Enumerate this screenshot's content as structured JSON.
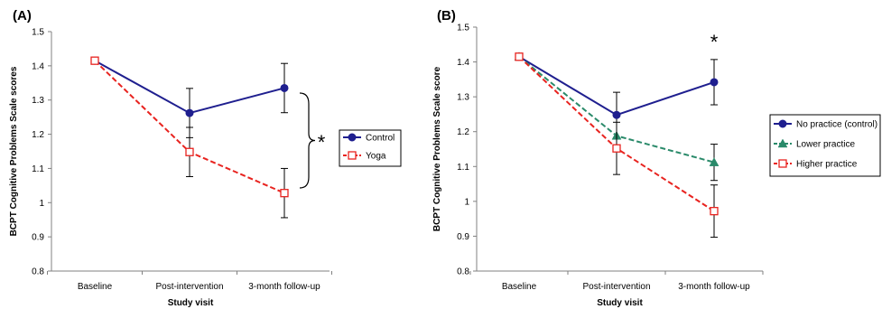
{
  "chart_data": [
    {
      "panel_label": "(A)",
      "type": "line",
      "categories": [
        "Baseline",
        "Post-intervention",
        "3-month follow-up"
      ],
      "xlabel": "Study visit",
      "ylabel": "BCPT Cognitive Problems Scale scores",
      "ylim": [
        0.8,
        1.5
      ],
      "yticks": [
        "0.8",
        "0.9",
        "1",
        "1.1",
        "1.2",
        "1.3",
        "1.4",
        "1.5"
      ],
      "grid": false,
      "legend_position": "right",
      "series": [
        {
          "name": "Control",
          "values": [
            1.415,
            1.262,
            1.335
          ],
          "error": [
            0,
            0.072,
            0.072
          ],
          "color": "#1f1f8f",
          "marker": "circle",
          "dash": "solid"
        },
        {
          "name": "Yoga",
          "values": [
            1.415,
            1.148,
            1.028
          ],
          "error": [
            0,
            0.072,
            0.072
          ],
          "color": "#e8231f",
          "marker": "open-square",
          "dash": "dashed"
        }
      ],
      "annotation": "*"
    },
    {
      "panel_label": "(B)",
      "type": "line",
      "categories": [
        "Baseline",
        "Post-intervention",
        "3-month follow-up"
      ],
      "xlabel": "Study visit",
      "ylabel": "BCPT Cognitive Problems Scale score",
      "ylim": [
        0.8,
        1.5
      ],
      "yticks": [
        "0.8",
        "0.9",
        "1",
        "1.1",
        "1.2",
        "1.3",
        "1.4",
        "1.5"
      ],
      "grid": false,
      "legend_position": "right",
      "series": [
        {
          "name": "No practice (control)",
          "values": [
            1.415,
            1.248,
            1.342
          ],
          "error": [
            0,
            0.065,
            0.065
          ],
          "color": "#1f1f8f",
          "marker": "circle",
          "dash": "solid"
        },
        {
          "name": "Lower practice",
          "values": [
            1.415,
            1.188,
            1.112
          ],
          "error": [
            0,
            0.0,
            0.052
          ],
          "color": "#2a8a6a",
          "marker": "triangle",
          "dash": "dashed"
        },
        {
          "name": "Higher practice",
          "values": [
            1.415,
            1.152,
            0.972
          ],
          "error": [
            0,
            0.075,
            0.075
          ],
          "color": "#e8231f",
          "marker": "open-square",
          "dash": "dashed"
        }
      ],
      "annotation": "*"
    }
  ]
}
